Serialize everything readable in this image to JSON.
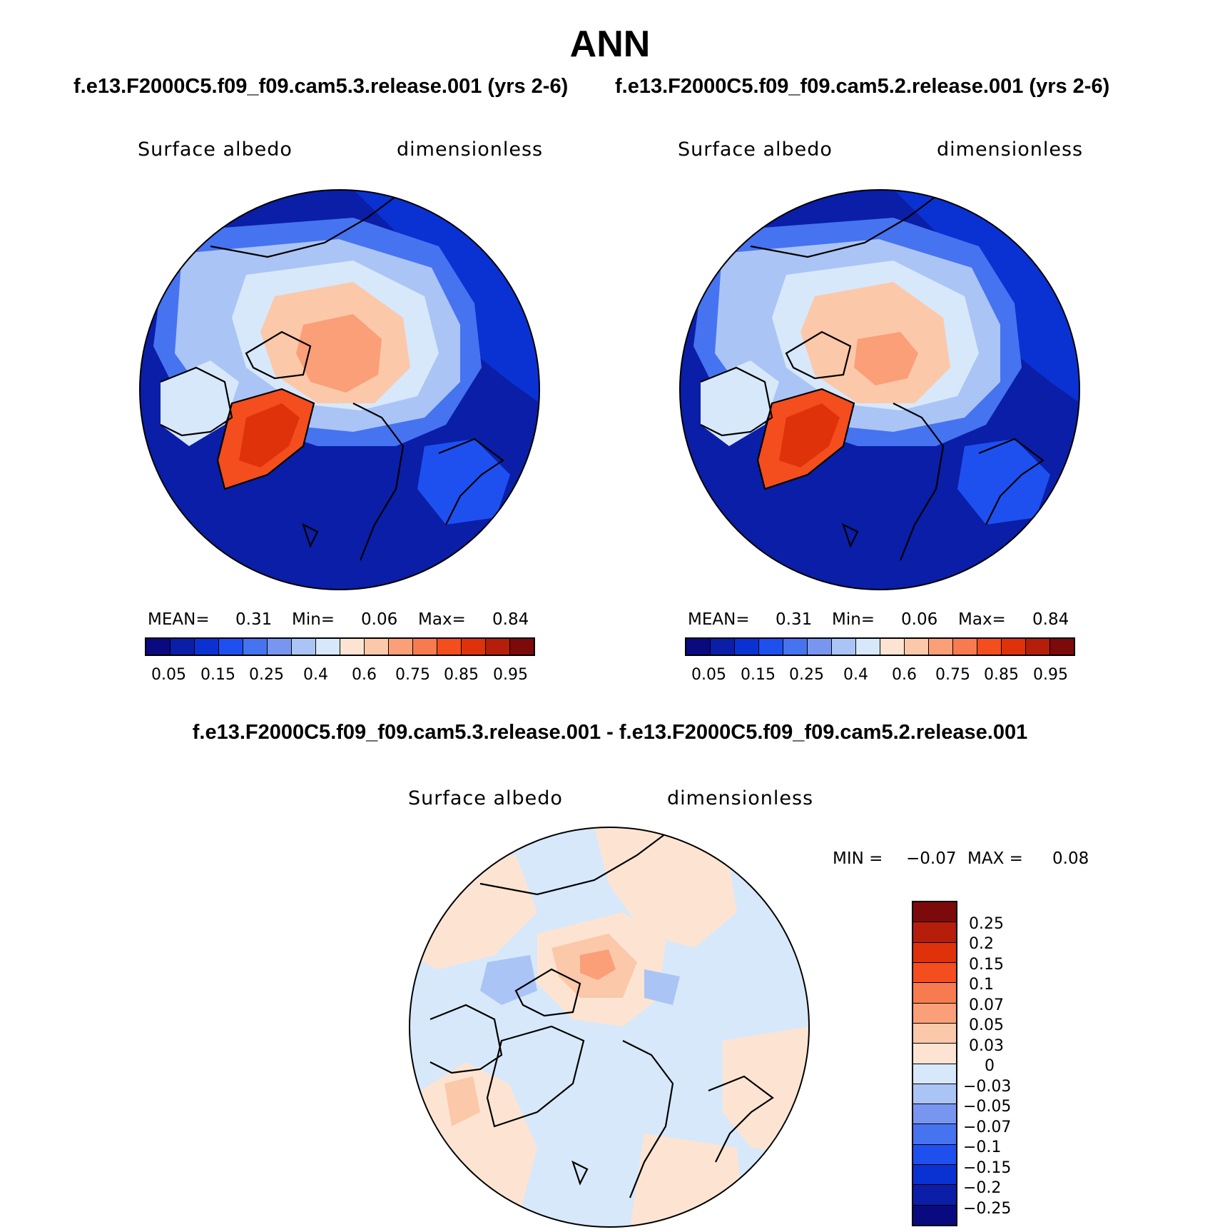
{
  "figure": {
    "title": "ANN",
    "case1": "f.e13.F2000C5.f09_f09.cam5.3.release.001 (yrs 2-6)",
    "case2": "f.e13.F2000C5.f09_f09.cam5.2.release.001 (yrs 2-6)",
    "diff_title": "f.e13.F2000C5.f09_f09.cam5.3.release.001 - f.e13.F2000C5.f09_f09.cam5.2.release.001"
  },
  "panels": [
    {
      "variable": "Surface albedo",
      "units": "dimensionless",
      "mean_label": "MEAN=",
      "mean": "0.31",
      "min_label": "Min=",
      "min": "0.06",
      "max_label": "Max=",
      "max": "0.84"
    },
    {
      "variable": "Surface albedo",
      "units": "dimensionless",
      "mean_label": "MEAN=",
      "mean": "0.31",
      "min_label": "Min=",
      "min": "0.06",
      "max_label": "Max=",
      "max": "0.84"
    }
  ],
  "diff_panel": {
    "variable": "Surface albedo",
    "units": "dimensionless",
    "min_label": "MIN =",
    "min": "−0.07",
    "max_label": "MAX =",
    "max": "0.08"
  },
  "main_colorbar": {
    "labels": [
      "0.05",
      "0.15",
      "0.25",
      "0.4",
      "0.6",
      "0.75",
      "0.85",
      "0.95"
    ],
    "colors": [
      "#0a0a80",
      "#0a1ea8",
      "#0a32d2",
      "#1e50f0",
      "#4673f0",
      "#7896f0",
      "#aac4f5",
      "#d7e8fa",
      "#fde4d2",
      "#fcc8aa",
      "#fa9f78",
      "#f77b4f",
      "#f44d1e",
      "#df320a",
      "#b41e0a",
      "#7d0a0a"
    ]
  },
  "diff_colorbar": {
    "labels": [
      "0.25",
      "0.2",
      "0.15",
      "0.1",
      "0.07",
      "0.05",
      "0.03",
      "0",
      "−0.03",
      "−0.05",
      "−0.07",
      "−0.1",
      "−0.15",
      "−0.2",
      "−0.25"
    ],
    "colors": [
      "#7d0a0a",
      "#b41e0a",
      "#df320a",
      "#f44d1e",
      "#f77b4f",
      "#fa9f78",
      "#fcc8aa",
      "#fde4d2",
      "#d7e8fa",
      "#aac4f5",
      "#7896f0",
      "#4673f0",
      "#1e50f0",
      "#0a32d2",
      "#0a1ea8",
      "#0a0a80"
    ]
  }
}
